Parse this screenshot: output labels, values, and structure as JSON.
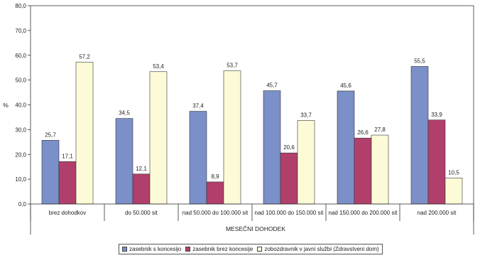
{
  "chart_data": {
    "type": "bar",
    "ylabel": "%",
    "xlabel": "MESEČNI DOHODEK",
    "ylim": [
      0,
      80
    ],
    "yticks": [
      "0,0",
      "10,0",
      "20,0",
      "30,0",
      "40,0",
      "50,0",
      "60,0",
      "70,0",
      "80,0"
    ],
    "grid": false,
    "legend_position": "bottom",
    "categories": [
      "brez dohodkov",
      "do 50.000 sit",
      "nad 50.000 do 100.000 sit",
      "nad 100.000 do 150.000 sit",
      "nad 150.000 do 200.000 sit",
      "nad 200.000 sit"
    ],
    "series": [
      {
        "name": "zasebnik s koncesijo",
        "color": "#7b8fc9",
        "values": [
          25.7,
          34.5,
          37.4,
          45.7,
          45.6,
          55.5
        ],
        "labels": [
          "25,7",
          "34,5",
          "37,4",
          "45,7",
          "45,6",
          "55,5"
        ]
      },
      {
        "name": "zasebnik brez koncesije",
        "color": "#b13f6b",
        "values": [
          17.1,
          12.1,
          8.9,
          20.6,
          26.6,
          33.9
        ],
        "labels": [
          "17,1",
          "12,1",
          "8,9",
          "20,6",
          "26,6",
          "33,9"
        ]
      },
      {
        "name": "zobozdravnik v javni službi (Zdravstveni dom)",
        "color": "#fdfbd7",
        "values": [
          57.2,
          53.4,
          53.7,
          33.7,
          27.8,
          10.5
        ],
        "labels": [
          "57,2",
          "53,4",
          "53,7",
          "33,7",
          "27,8",
          "10,5"
        ]
      }
    ]
  }
}
